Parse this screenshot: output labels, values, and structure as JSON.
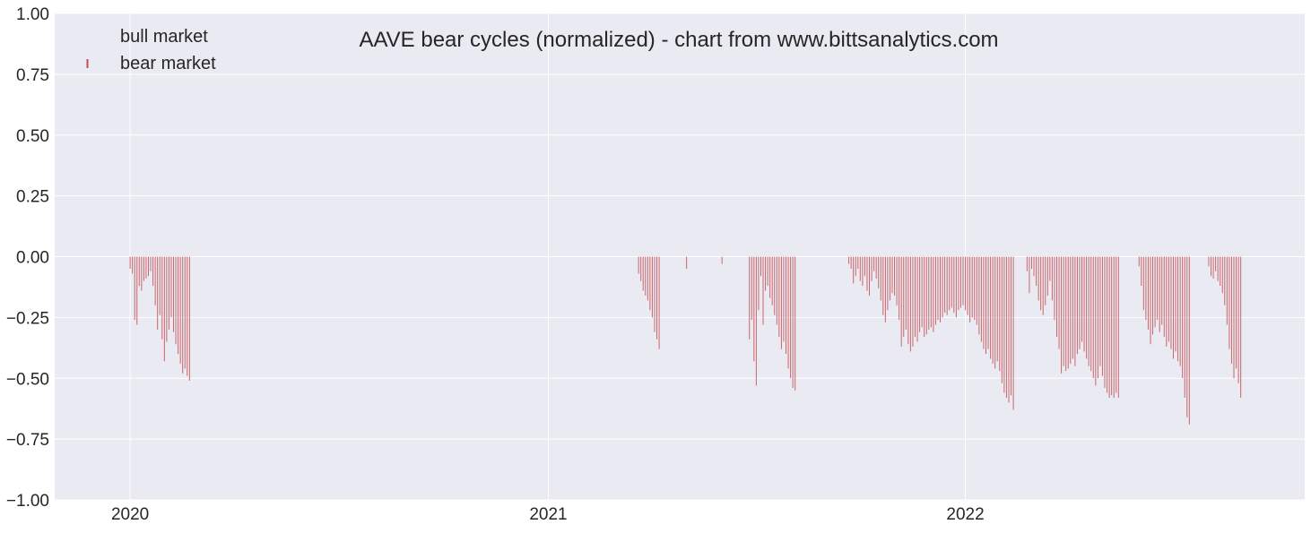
{
  "chart_data": {
    "type": "bar",
    "title": "AAVE bear cycles (normalized)  - chart from www.bittsanalytics.com",
    "xlabel": "",
    "ylabel": "",
    "ylim": [
      -1.0,
      1.0
    ],
    "yticks": [
      "1.00",
      "0.75",
      "0.50",
      "0.25",
      "0.00",
      "−0.25",
      "−0.50",
      "−0.75",
      "−1.00"
    ],
    "ytick_values": [
      1.0,
      0.75,
      0.5,
      0.25,
      0.0,
      -0.25,
      -0.5,
      -0.75,
      -1.0
    ],
    "xlim": [
      "2019-10-27",
      "2022-10-25"
    ],
    "xticks": [
      {
        "label": "2020",
        "date": "2020-01-01"
      },
      {
        "label": "2021",
        "date": "2021-01-01"
      },
      {
        "label": "2022",
        "date": "2022-01-01"
      }
    ],
    "grid": true,
    "legend_position": "top-left",
    "legend": [
      {
        "label": "bull market",
        "color": "#4c72b0"
      },
      {
        "label": "bear market",
        "color": "#c44e52"
      }
    ],
    "colors": {
      "background": "#eaeaf2",
      "grid": "#ffffff",
      "bear": "#c44e52"
    },
    "series": [
      {
        "name": "bull market",
        "points": []
      },
      {
        "name": "bear market",
        "points": [
          [
            "2020-01-01",
            -0.05
          ],
          [
            "2020-01-03",
            -0.07
          ],
          [
            "2020-01-05",
            -0.26
          ],
          [
            "2020-01-07",
            -0.28
          ],
          [
            "2020-01-09",
            -0.12
          ],
          [
            "2020-01-11",
            -0.14
          ],
          [
            "2020-01-13",
            -0.1
          ],
          [
            "2020-01-15",
            -0.09
          ],
          [
            "2020-01-17",
            -0.08
          ],
          [
            "2020-01-19",
            -0.06
          ],
          [
            "2020-01-21",
            -0.12
          ],
          [
            "2020-01-23",
            -0.2
          ],
          [
            "2020-01-25",
            -0.3
          ],
          [
            "2020-01-27",
            -0.24
          ],
          [
            "2020-01-29",
            -0.34
          ],
          [
            "2020-01-31",
            -0.43
          ],
          [
            "2020-02-02",
            -0.35
          ],
          [
            "2020-02-04",
            -0.3
          ],
          [
            "2020-02-06",
            -0.25
          ],
          [
            "2020-02-08",
            -0.31
          ],
          [
            "2020-02-10",
            -0.36
          ],
          [
            "2020-02-12",
            -0.4
          ],
          [
            "2020-02-14",
            -0.44
          ],
          [
            "2020-02-16",
            -0.48
          ],
          [
            "2020-02-18",
            -0.46
          ],
          [
            "2020-02-20",
            -0.49
          ],
          [
            "2020-02-22",
            -0.51
          ],
          [
            "2021-03-21",
            -0.07
          ],
          [
            "2021-03-23",
            -0.1
          ],
          [
            "2021-03-25",
            -0.14
          ],
          [
            "2021-03-27",
            -0.16
          ],
          [
            "2021-03-29",
            -0.18
          ],
          [
            "2021-03-31",
            -0.22
          ],
          [
            "2021-04-02",
            -0.25
          ],
          [
            "2021-04-04",
            -0.31
          ],
          [
            "2021-04-06",
            -0.34
          ],
          [
            "2021-04-08",
            -0.38
          ],
          [
            "2021-05-02",
            -0.05
          ],
          [
            "2021-06-02",
            -0.03
          ],
          [
            "2021-06-26",
            -0.34
          ],
          [
            "2021-06-28",
            -0.26
          ],
          [
            "2021-06-30",
            -0.43
          ],
          [
            "2021-07-02",
            -0.53
          ],
          [
            "2021-07-04",
            -0.22
          ],
          [
            "2021-07-06",
            -0.08
          ],
          [
            "2021-07-08",
            -0.28
          ],
          [
            "2021-07-10",
            -0.14
          ],
          [
            "2021-07-12",
            -0.12
          ],
          [
            "2021-07-14",
            -0.17
          ],
          [
            "2021-07-16",
            -0.2
          ],
          [
            "2021-07-18",
            -0.24
          ],
          [
            "2021-07-20",
            -0.28
          ],
          [
            "2021-07-22",
            -0.33
          ],
          [
            "2021-07-24",
            -0.38
          ],
          [
            "2021-07-26",
            -0.35
          ],
          [
            "2021-07-28",
            -0.4
          ],
          [
            "2021-07-30",
            -0.46
          ],
          [
            "2021-08-01",
            -0.5
          ],
          [
            "2021-08-03",
            -0.54
          ],
          [
            "2021-08-05",
            -0.55
          ],
          [
            "2021-09-21",
            -0.03
          ],
          [
            "2021-09-23",
            -0.05
          ],
          [
            "2021-09-25",
            -0.11
          ],
          [
            "2021-09-27",
            -0.08
          ],
          [
            "2021-09-29",
            -0.05
          ],
          [
            "2021-10-01",
            -0.1
          ],
          [
            "2021-10-03",
            -0.12
          ],
          [
            "2021-10-05",
            -0.08
          ],
          [
            "2021-10-07",
            -0.14
          ],
          [
            "2021-10-09",
            -0.16
          ],
          [
            "2021-10-11",
            -0.1
          ],
          [
            "2021-10-13",
            -0.06
          ],
          [
            "2021-10-15",
            -0.09
          ],
          [
            "2021-10-17",
            -0.13
          ],
          [
            "2021-10-19",
            -0.18
          ],
          [
            "2021-10-21",
            -0.24
          ],
          [
            "2021-10-23",
            -0.27
          ],
          [
            "2021-10-25",
            -0.22
          ],
          [
            "2021-10-27",
            -0.18
          ],
          [
            "2021-10-29",
            -0.15
          ],
          [
            "2021-10-31",
            -0.16
          ],
          [
            "2021-11-02",
            -0.2
          ],
          [
            "2021-11-04",
            -0.26
          ],
          [
            "2021-11-06",
            -0.37
          ],
          [
            "2021-11-08",
            -0.33
          ],
          [
            "2021-11-10",
            -0.3
          ],
          [
            "2021-11-12",
            -0.36
          ],
          [
            "2021-11-14",
            -0.39
          ],
          [
            "2021-11-16",
            -0.37
          ],
          [
            "2021-11-18",
            -0.33
          ],
          [
            "2021-11-20",
            -0.35
          ],
          [
            "2021-11-22",
            -0.31
          ],
          [
            "2021-11-24",
            -0.29
          ],
          [
            "2021-11-26",
            -0.33
          ],
          [
            "2021-11-28",
            -0.32
          ],
          [
            "2021-11-30",
            -0.3
          ],
          [
            "2021-12-02",
            -0.29
          ],
          [
            "2021-12-04",
            -0.31
          ],
          [
            "2021-12-06",
            -0.28
          ],
          [
            "2021-12-08",
            -0.26
          ],
          [
            "2021-12-10",
            -0.27
          ],
          [
            "2021-12-12",
            -0.25
          ],
          [
            "2021-12-14",
            -0.23
          ],
          [
            "2021-12-16",
            -0.24
          ],
          [
            "2021-12-18",
            -0.22
          ],
          [
            "2021-12-20",
            -0.21
          ],
          [
            "2021-12-22",
            -0.23
          ],
          [
            "2021-12-24",
            -0.25
          ],
          [
            "2021-12-26",
            -0.22
          ],
          [
            "2021-12-28",
            -0.21
          ],
          [
            "2021-12-30",
            -0.2
          ],
          [
            "2022-01-01",
            -0.22
          ],
          [
            "2022-01-03",
            -0.24
          ],
          [
            "2022-01-05",
            -0.27
          ],
          [
            "2022-01-07",
            -0.25
          ],
          [
            "2022-01-09",
            -0.26
          ],
          [
            "2022-01-11",
            -0.28
          ],
          [
            "2022-01-13",
            -0.32
          ],
          [
            "2022-01-15",
            -0.35
          ],
          [
            "2022-01-17",
            -0.38
          ],
          [
            "2022-01-19",
            -0.4
          ],
          [
            "2022-01-21",
            -0.38
          ],
          [
            "2022-01-23",
            -0.42
          ],
          [
            "2022-01-25",
            -0.44
          ],
          [
            "2022-01-27",
            -0.46
          ],
          [
            "2022-01-29",
            -0.43
          ],
          [
            "2022-01-31",
            -0.47
          ],
          [
            "2022-02-02",
            -0.52
          ],
          [
            "2022-02-04",
            -0.56
          ],
          [
            "2022-02-06",
            -0.58
          ],
          [
            "2022-02-08",
            -0.6
          ],
          [
            "2022-02-10",
            -0.57
          ],
          [
            "2022-02-12",
            -0.63
          ],
          [
            "2022-02-24",
            -0.06
          ],
          [
            "2022-02-26",
            -0.15
          ],
          [
            "2022-02-28",
            -0.05
          ],
          [
            "2022-03-02",
            -0.08
          ],
          [
            "2022-03-04",
            -0.12
          ],
          [
            "2022-03-06",
            -0.18
          ],
          [
            "2022-03-08",
            -0.22
          ],
          [
            "2022-03-10",
            -0.24
          ],
          [
            "2022-03-12",
            -0.2
          ],
          [
            "2022-03-14",
            -0.16
          ],
          [
            "2022-03-16",
            -0.1
          ],
          [
            "2022-03-18",
            -0.18
          ],
          [
            "2022-03-20",
            -0.26
          ],
          [
            "2022-03-22",
            -0.33
          ],
          [
            "2022-03-24",
            -0.38
          ],
          [
            "2022-03-26",
            -0.48
          ],
          [
            "2022-03-28",
            -0.45
          ],
          [
            "2022-03-30",
            -0.47
          ],
          [
            "2022-04-01",
            -0.46
          ],
          [
            "2022-04-03",
            -0.44
          ],
          [
            "2022-04-05",
            -0.42
          ],
          [
            "2022-04-07",
            -0.45
          ],
          [
            "2022-04-09",
            -0.4
          ],
          [
            "2022-04-11",
            -0.38
          ],
          [
            "2022-04-13",
            -0.35
          ],
          [
            "2022-04-15",
            -0.39
          ],
          [
            "2022-04-17",
            -0.42
          ],
          [
            "2022-04-19",
            -0.45
          ],
          [
            "2022-04-21",
            -0.47
          ],
          [
            "2022-04-23",
            -0.5
          ],
          [
            "2022-04-25",
            -0.53
          ],
          [
            "2022-04-27",
            -0.5
          ],
          [
            "2022-04-29",
            -0.45
          ],
          [
            "2022-05-01",
            -0.49
          ],
          [
            "2022-05-03",
            -0.54
          ],
          [
            "2022-05-05",
            -0.56
          ],
          [
            "2022-05-07",
            -0.58
          ],
          [
            "2022-05-09",
            -0.57
          ],
          [
            "2022-05-11",
            -0.58
          ],
          [
            "2022-05-13",
            -0.56
          ],
          [
            "2022-05-15",
            -0.58
          ],
          [
            "2022-06-02",
            -0.04
          ],
          [
            "2022-06-04",
            -0.12
          ],
          [
            "2022-06-06",
            -0.22
          ],
          [
            "2022-06-08",
            -0.26
          ],
          [
            "2022-06-10",
            -0.3
          ],
          [
            "2022-06-12",
            -0.36
          ],
          [
            "2022-06-14",
            -0.32
          ],
          [
            "2022-06-16",
            -0.29
          ],
          [
            "2022-06-18",
            -0.26
          ],
          [
            "2022-06-20",
            -0.31
          ],
          [
            "2022-06-22",
            -0.28
          ],
          [
            "2022-06-24",
            -0.33
          ],
          [
            "2022-06-26",
            -0.37
          ],
          [
            "2022-06-28",
            -0.35
          ],
          [
            "2022-06-30",
            -0.38
          ],
          [
            "2022-07-02",
            -0.42
          ],
          [
            "2022-07-04",
            -0.39
          ],
          [
            "2022-07-06",
            -0.43
          ],
          [
            "2022-07-08",
            -0.45
          ],
          [
            "2022-07-10",
            -0.5
          ],
          [
            "2022-07-12",
            -0.58
          ],
          [
            "2022-07-14",
            -0.66
          ],
          [
            "2022-07-16",
            -0.69
          ],
          [
            "2022-08-02",
            -0.04
          ],
          [
            "2022-08-04",
            -0.08
          ],
          [
            "2022-08-06",
            -0.09
          ],
          [
            "2022-08-08",
            -0.06
          ],
          [
            "2022-08-10",
            -0.1
          ],
          [
            "2022-08-12",
            -0.12
          ],
          [
            "2022-08-14",
            -0.15
          ],
          [
            "2022-08-16",
            -0.2
          ],
          [
            "2022-08-18",
            -0.28
          ],
          [
            "2022-08-20",
            -0.38
          ],
          [
            "2022-08-22",
            -0.44
          ],
          [
            "2022-08-24",
            -0.5
          ],
          [
            "2022-08-26",
            -0.46
          ],
          [
            "2022-08-28",
            -0.52
          ],
          [
            "2022-08-30",
            -0.58
          ]
        ]
      }
    ]
  }
}
